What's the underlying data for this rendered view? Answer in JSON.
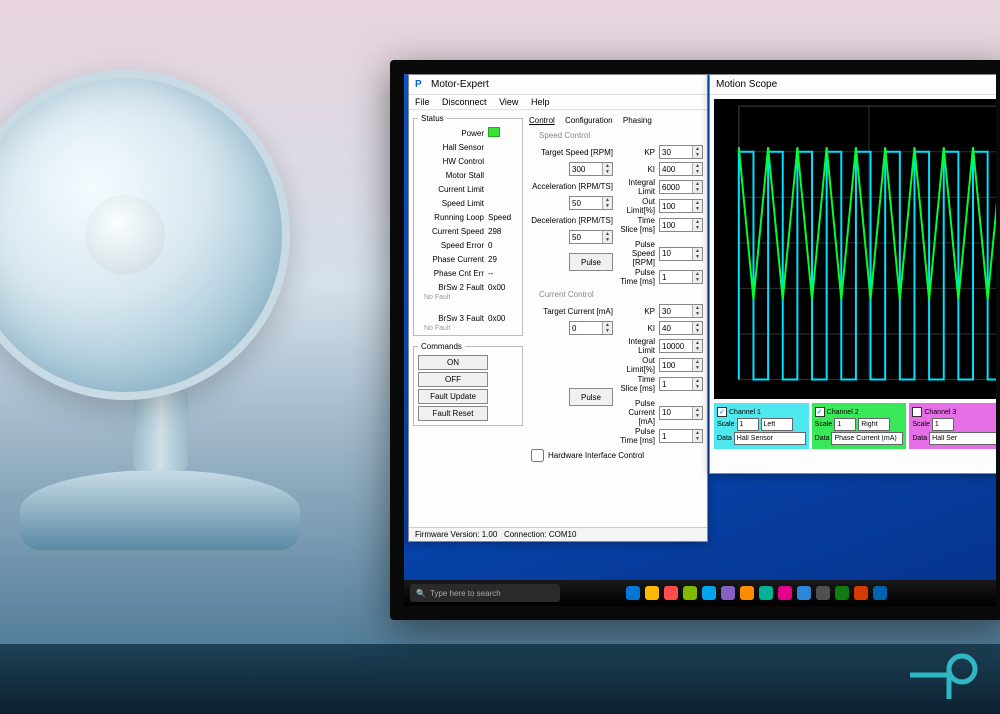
{
  "app": {
    "title": "Motor-Expert",
    "menus": [
      "File",
      "Disconnect",
      "View",
      "Help"
    ]
  },
  "status": {
    "legend": "Status",
    "rows": {
      "power": "Power",
      "hall": "Hall Sensor",
      "hw": "HW Control",
      "stall": "Motor Stall",
      "climit": "Current Limit",
      "slimit": "Speed Limit",
      "runloop": "Running Loop",
      "runloop_val": "Speed",
      "curspeed": "Current Speed",
      "curspeed_val": "298",
      "serr": "Speed Error",
      "serr_val": "0",
      "pcur": "Phase Current",
      "pcur_val": "29",
      "pcnterr": "Phase Cnt Err",
      "pcnterr_val": "--",
      "brsw2": "BrSw 2 Fault",
      "brsw2_val": "0x00",
      "brsw2_msg": "No Fault",
      "brsw3": "BrSw 3 Fault",
      "brsw3_val": "0x00",
      "brsw3_msg": "No Fault"
    }
  },
  "commands": {
    "legend": "Commands",
    "on": "ON",
    "off": "OFF",
    "fupdate": "Fault Update",
    "freset": "Fault Reset"
  },
  "tabs": {
    "control": "Control",
    "config": "Configuration",
    "phasing": "Phasing"
  },
  "speed": {
    "section": "Speed Control",
    "target_lbl": "Target Speed [RPM]",
    "target": "300",
    "accel_lbl": "Acceleration [RPM/TS]",
    "accel": "50",
    "decel_lbl": "Deceleration [RPM/TS]",
    "decel": "50",
    "kp_lbl": "KP",
    "kp": "30",
    "ki_lbl": "KI",
    "ki": "400",
    "ilimit_lbl": "Integral Limit",
    "ilimit": "6000",
    "outlimit_lbl": "Out Limit[%]",
    "outlimit": "100",
    "tslice_lbl": "Time Slice [ms]",
    "tslice": "100",
    "pulse_btn": "Pulse",
    "pspeed_lbl": "Pulse Speed [RPM]",
    "pspeed": "10",
    "ptime_lbl": "Pulse Time [ms]",
    "ptime": "1"
  },
  "current": {
    "section": "Current Control",
    "target_lbl": "Target Current [mA]",
    "target": "0",
    "kp_lbl": "KP",
    "kp": "30",
    "ki_lbl": "KI",
    "ki": "40",
    "ilimit_lbl": "Integral Limit",
    "ilimit": "10000",
    "outlimit_lbl": "Out Limit[%]",
    "outlimit": "100",
    "tslice_lbl": "Time Slice [ms]",
    "tslice": "1",
    "pulse_btn": "Pulse",
    "pcur_lbl": "Pulse Current [mA]",
    "pcur": "10",
    "ptime_lbl": "Pulse Time [ms]",
    "ptime": "1"
  },
  "hwcheck": "Hardware Interface Control",
  "footer": {
    "fw_lbl": "Firmware Version:",
    "fw": "1.00",
    "conn_lbl": "Connection:",
    "conn": "COM10"
  },
  "scope": {
    "title": "Motion Scope",
    "chart": {
      "type": "line",
      "background": "#000000",
      "grid_color": "#303030",
      "xlim": [
        0,
        400
      ],
      "ylim": [
        0,
        1.2
      ],
      "xticks": [
        0,
        200,
        400
      ],
      "yticks": [
        0,
        0.2,
        0.4,
        0.6,
        0.8,
        1.0,
        1.2
      ],
      "series": [
        {
          "name": "Hall Sensor",
          "color": "#00e0ff",
          "width": 2,
          "square_period": 45,
          "square_high": 1.0,
          "square_low": 0.0,
          "duty": 0.5
        },
        {
          "name": "Phase Current (mA)",
          "color": "#00ff30",
          "width": 2,
          "saw_period": 45,
          "saw_high": 1.02,
          "saw_low": 0.35
        }
      ]
    },
    "channels": [
      {
        "label": "Channel 1",
        "bg": "#4fe8ef",
        "checked": true,
        "scale": "1",
        "side": "Left",
        "data": "Hall Sensor"
      },
      {
        "label": "Channel 2",
        "bg": "#38e858",
        "checked": true,
        "scale": "1",
        "side": "Right",
        "data": "Phase Current (mA)"
      },
      {
        "label": "Channel 3",
        "bg": "#e66fe8",
        "checked": false,
        "scale": "1",
        "side": "",
        "data": "Hall Ser"
      }
    ]
  },
  "taskbar": {
    "search_placeholder": "Type here to search",
    "icon_colors": [
      "#0078d4",
      "#ffb900",
      "#ff4c4c",
      "#7fba00",
      "#00a4ef",
      "#8661c5",
      "#ff8c00",
      "#00b294",
      "#e3008c",
      "#2b88d8",
      "#505050",
      "#107c10",
      "#d83b01",
      "#0063b1"
    ]
  }
}
